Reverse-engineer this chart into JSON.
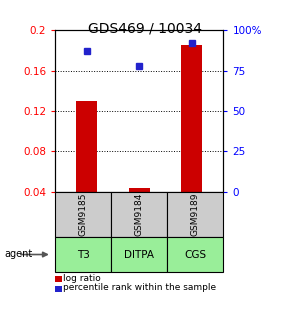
{
  "title": "GDS469 / 10034",
  "samples": [
    "GSM9185",
    "GSM9184",
    "GSM9189"
  ],
  "agents": [
    "T3",
    "DITPA",
    "CGS"
  ],
  "log_ratios": [
    0.13,
    0.043,
    0.185
  ],
  "percentile_ranks": [
    87,
    78,
    92
  ],
  "left_ylim": [
    0.04,
    0.2
  ],
  "right_ylim": [
    0,
    100
  ],
  "left_yticks": [
    0.04,
    0.08,
    0.12,
    0.16,
    0.2
  ],
  "right_yticks": [
    0,
    25,
    50,
    75,
    100
  ],
  "right_yticklabels": [
    "0",
    "25",
    "50",
    "75",
    "100%"
  ],
  "bar_color": "#cc0000",
  "dot_color": "#2222cc",
  "agent_bg_color": "#99ee99",
  "sample_bg_color": "#cccccc",
  "legend_bar_label": "log ratio",
  "legend_dot_label": "percentile rank within the sample",
  "bar_width": 0.4,
  "title_fontsize": 10,
  "tick_fontsize": 7.5,
  "label_fontsize": 7
}
